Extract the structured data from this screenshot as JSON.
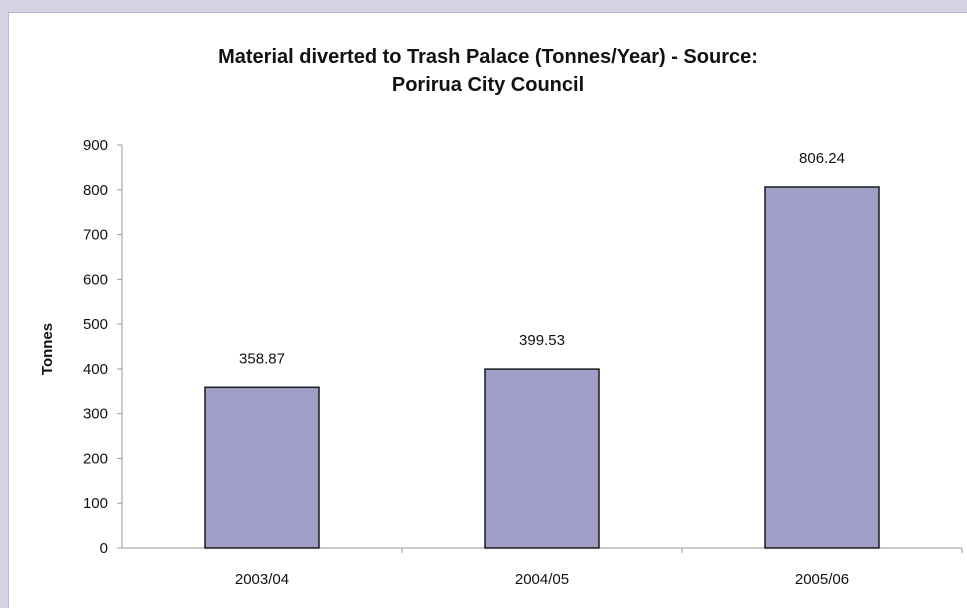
{
  "chart_data": {
    "type": "bar",
    "title_line1": "Material diverted to Trash Palace (Tonnes/Year) - Source:",
    "title_line2": "Porirua City Council",
    "xlabel": "",
    "ylabel": "Tonnes",
    "categories": [
      "2003/04",
      "2004/05",
      "2005/06"
    ],
    "values": [
      358.87,
      399.53,
      806.24
    ],
    "data_labels": [
      "358.87",
      "399.53",
      "806.24"
    ],
    "ylim": [
      0,
      900
    ],
    "yticks": [
      0,
      100,
      200,
      300,
      400,
      500,
      600,
      700,
      800,
      900
    ],
    "grid": false,
    "legend": "none",
    "bar_color": "#9f9ec9",
    "bar_edge_color": "#1a1a1a",
    "background_color": "#d6d3e6"
  }
}
